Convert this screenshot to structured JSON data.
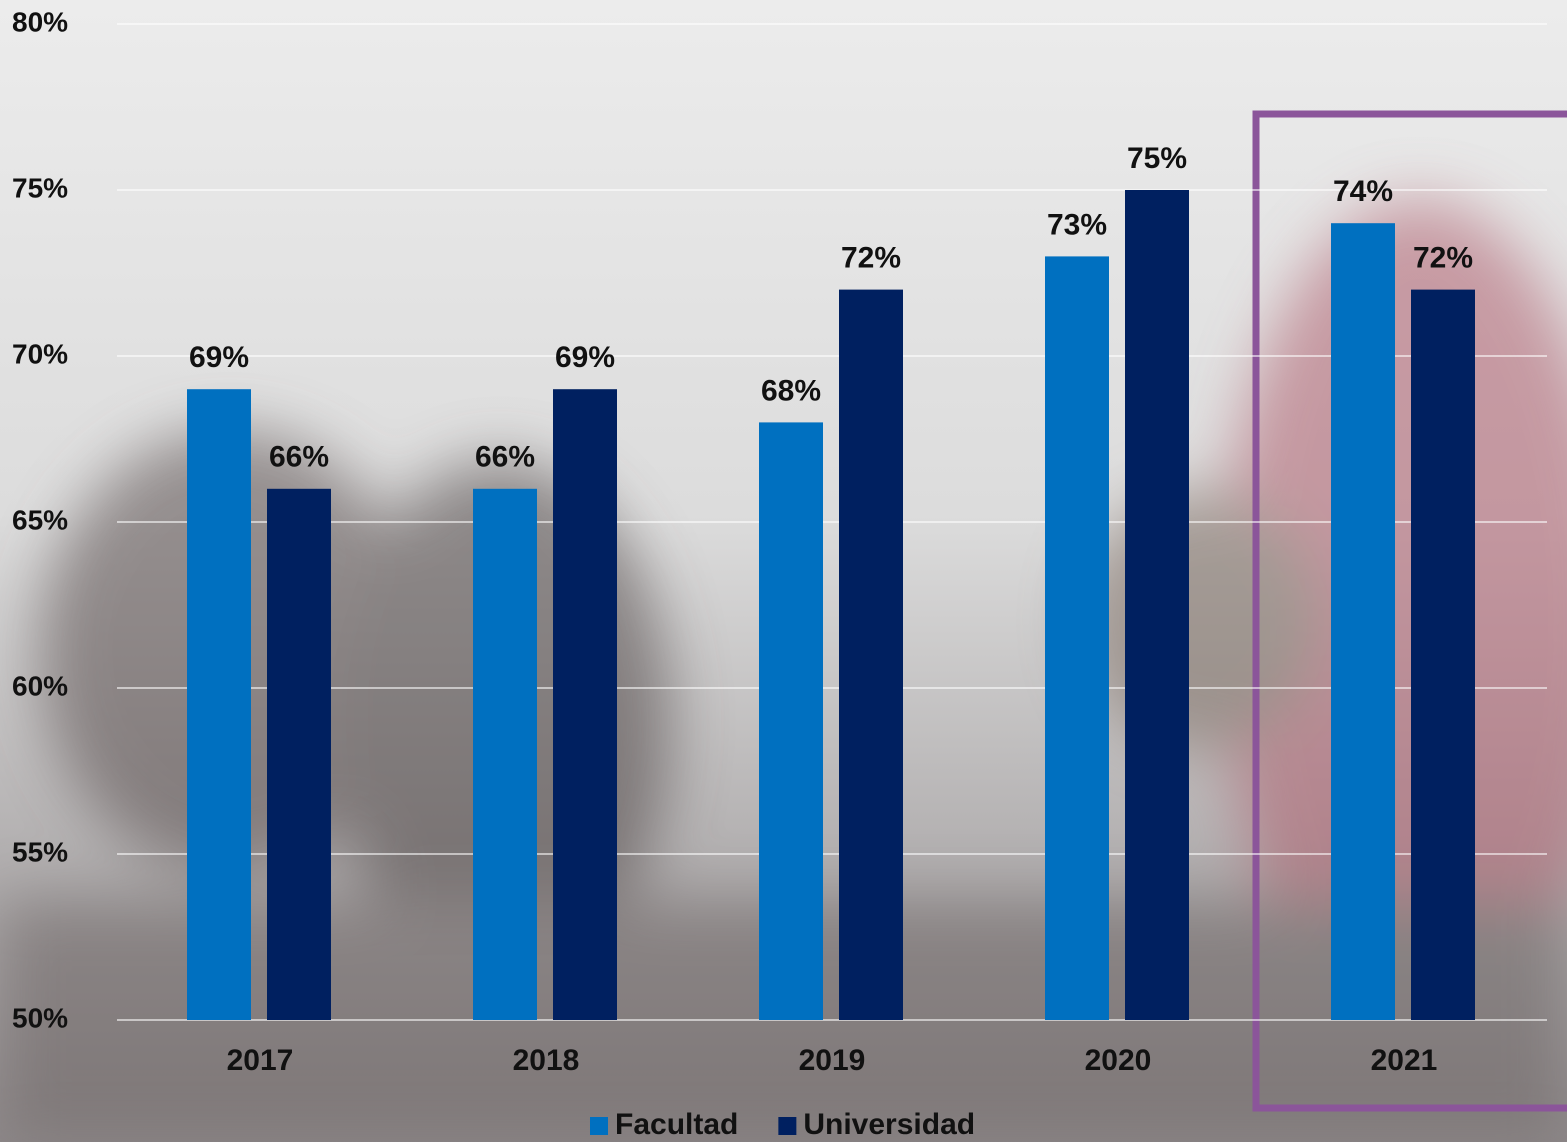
{
  "chart_data": {
    "type": "bar",
    "categories": [
      "2017",
      "2018",
      "2019",
      "2020",
      "2021"
    ],
    "series": [
      {
        "name": "Facultad",
        "color": "#0070c0",
        "values": [
          69,
          66,
          68,
          73,
          74
        ],
        "value_labels": [
          "69%",
          "66%",
          "68%",
          "73%",
          "74%"
        ]
      },
      {
        "name": "Universidad",
        "color": "#002060",
        "values": [
          66,
          69,
          72,
          75,
          72
        ],
        "value_labels": [
          "66%",
          "69%",
          "72%",
          "75%",
          "72%"
        ]
      }
    ],
    "ylim": [
      50,
      80
    ],
    "yticks": [
      {
        "value": 50,
        "label": "50%"
      },
      {
        "value": 55,
        "label": "55%"
      },
      {
        "value": 60,
        "label": "60%"
      },
      {
        "value": 65,
        "label": "65%"
      },
      {
        "value": 70,
        "label": "70%"
      },
      {
        "value": 75,
        "label": "75%"
      },
      {
        "value": 80,
        "label": "80%"
      }
    ],
    "grid": true,
    "legend": "bottom"
  }
}
